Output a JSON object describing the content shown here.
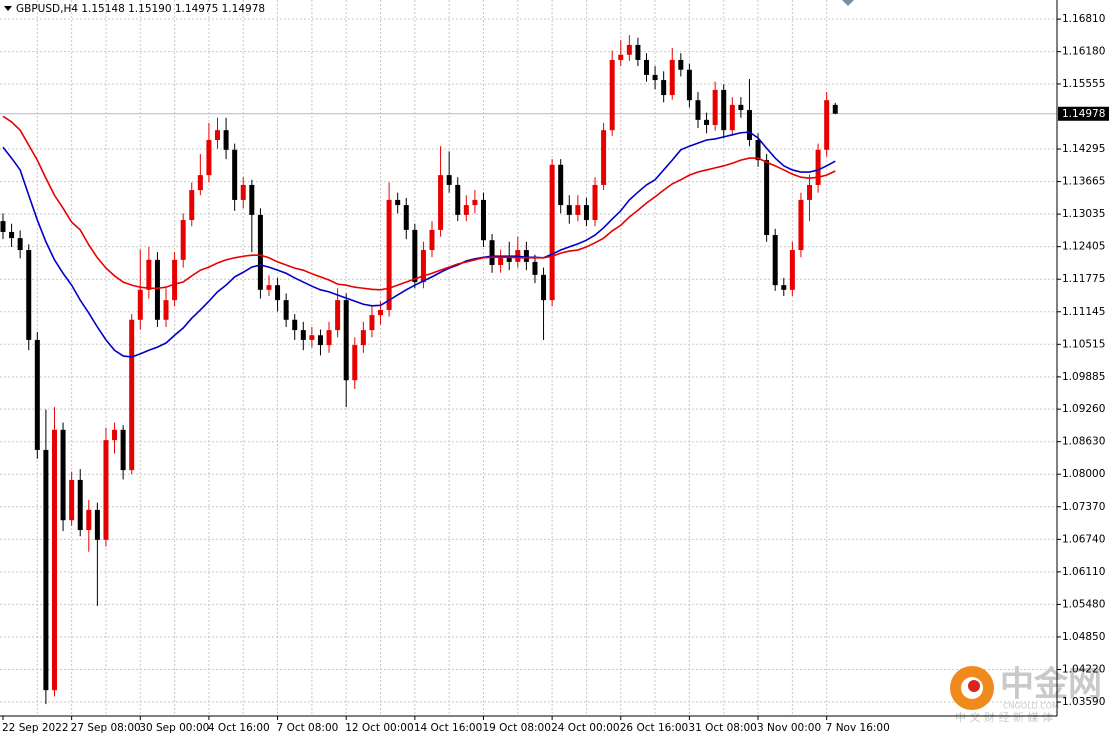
{
  "chart_data": {
    "type": "candlestick",
    "title": "GBPUSD,H4  1.15148 1.15190 1.14975 1.14978",
    "categories": [
      "22 Sep 2022",
      null,
      null,
      null,
      null,
      null,
      null,
      null,
      "27 Sep 08:00",
      null,
      null,
      null,
      null,
      null,
      null,
      null,
      "30 Sep 00:00",
      null,
      null,
      null,
      null,
      null,
      null,
      null,
      "4 Oct 16:00",
      null,
      null,
      null,
      null,
      null,
      null,
      null,
      "7 Oct 08:00",
      null,
      null,
      null,
      null,
      null,
      null,
      null,
      "12 Oct 00:00",
      null,
      null,
      null,
      null,
      null,
      null,
      null,
      "14 Oct 16:00",
      null,
      null,
      null,
      null,
      null,
      null,
      null,
      "19 Oct 08:00",
      null,
      null,
      null,
      null,
      null,
      null,
      null,
      "24 Oct 00:00",
      null,
      null,
      null,
      null,
      null,
      null,
      null,
      "26 Oct 16:00",
      null,
      null,
      null,
      null,
      null,
      null,
      null,
      "31 Oct 08:00",
      null,
      null,
      null,
      null,
      null,
      null,
      null,
      "3 Nov 00:00",
      null,
      null,
      null,
      null,
      null,
      null,
      null,
      "7 Nov 16:00",
      null
    ],
    "open": [
      1.129,
      1.1269,
      1.1257,
      1.1234,
      1.106,
      1.0847,
      1.0382,
      1.0886,
      1.0711,
      1.0789,
      1.0692,
      1.0731,
      1.0673,
      1.0866,
      1.0886,
      1.0808,
      1.1099,
      1.1157,
      1.1215,
      1.1099,
      1.1137,
      1.1215,
      1.1292,
      1.135,
      1.1379,
      1.1447,
      1.1466,
      1.1428,
      1.1331,
      1.136,
      1.1302,
      1.1157,
      1.1166,
      1.1137,
      1.1099,
      1.1079,
      1.106,
      1.1069,
      1.105,
      1.1079,
      1.1137,
      1.0982,
      1.105,
      1.1079,
      1.1108,
      1.1118,
      1.1331,
      1.1321,
      1.1273,
      1.1172,
      1.1234,
      1.1273,
      1.1379,
      1.136,
      1.1302,
      1.1321,
      1.1331,
      1.1253,
      1.1205,
      1.1219,
      1.1211,
      1.1234,
      1.1211,
      1.1186,
      1.1137,
      1.1399,
      1.1321,
      1.1302,
      1.1321,
      1.1292,
      1.136,
      1.1466,
      1.1602,
      1.1612,
      1.1631,
      1.1602,
      1.1573,
      1.1563,
      1.1534,
      1.1602,
      1.1583,
      1.1524,
      1.1486,
      1.1476,
      1.1544,
      1.1466,
      1.1515,
      1.1505,
      1.1447,
      1.1408,
      1.1263,
      1.1166,
      1.1157,
      1.1234,
      1.1331,
      1.136,
      1.1428,
      1.1515
    ],
    "high": [
      1.1305,
      1.1285,
      1.1272,
      1.1245,
      1.1075,
      1.0925,
      1.093,
      1.09,
      1.0805,
      1.081,
      1.075,
      1.0745,
      1.089,
      1.09,
      1.0895,
      1.111,
      1.1235,
      1.124,
      1.123,
      1.116,
      1.123,
      1.1305,
      1.1365,
      1.142,
      1.148,
      1.149,
      1.149,
      1.144,
      1.1375,
      1.137,
      1.1315,
      1.1185,
      1.118,
      1.115,
      1.111,
      1.1095,
      1.1085,
      1.108,
      1.1095,
      1.116,
      1.115,
      1.1065,
      1.1095,
      1.1125,
      1.1135,
      1.1365,
      1.1345,
      1.1335,
      1.1285,
      1.125,
      1.129,
      1.1435,
      1.1425,
      1.1375,
      1.134,
      1.135,
      1.1345,
      1.1265,
      1.1235,
      1.125,
      1.126,
      1.125,
      1.1225,
      1.12,
      1.141,
      1.141,
      1.134,
      1.134,
      1.1335,
      1.1375,
      1.148,
      1.162,
      1.164,
      1.165,
      1.1645,
      1.1615,
      1.159,
      1.158,
      1.1625,
      1.1615,
      1.1595,
      1.154,
      1.15,
      1.156,
      1.1555,
      1.153,
      1.153,
      1.1565,
      1.146,
      1.142,
      1.1275,
      1.118,
      1.125,
      1.1345,
      1.138,
      1.144,
      1.154,
      1.1519
    ],
    "low": [
      1.1255,
      1.124,
      1.1218,
      1.104,
      1.083,
      1.0355,
      1.037,
      1.069,
      1.07,
      1.068,
      1.065,
      1.0545,
      1.066,
      1.084,
      1.079,
      1.08,
      1.108,
      1.114,
      1.1085,
      1.1085,
      1.1125,
      1.12,
      1.128,
      1.134,
      1.1365,
      1.143,
      1.141,
      1.131,
      1.1315,
      1.123,
      1.114,
      1.1145,
      1.1115,
      1.1085,
      1.106,
      1.104,
      1.1045,
      1.103,
      1.1035,
      1.1065,
      1.093,
      1.0965,
      1.1035,
      1.1065,
      1.109,
      1.1105,
      1.1305,
      1.1255,
      1.116,
      1.116,
      1.122,
      1.126,
      1.1345,
      1.129,
      1.129,
      1.1305,
      1.124,
      1.119,
      1.119,
      1.1195,
      1.12,
      1.1195,
      1.117,
      1.106,
      1.1125,
      1.1305,
      1.1285,
      1.129,
      1.128,
      1.128,
      1.135,
      1.1455,
      1.159,
      1.16,
      1.159,
      1.156,
      1.1545,
      1.152,
      1.1525,
      1.157,
      1.151,
      1.147,
      1.146,
      1.1465,
      1.145,
      1.1455,
      1.149,
      1.1435,
      1.1395,
      1.125,
      1.1155,
      1.1145,
      1.1145,
      1.122,
      1.129,
      1.1345,
      1.1415,
      1.1497
    ],
    "close": [
      1.1269,
      1.1257,
      1.1234,
      1.106,
      1.0847,
      1.0382,
      1.0886,
      1.0711,
      1.0789,
      1.0692,
      1.0731,
      1.0673,
      1.0866,
      1.0886,
      1.0808,
      1.1099,
      1.1157,
      1.1215,
      1.1099,
      1.1137,
      1.1215,
      1.1292,
      1.135,
      1.1379,
      1.1447,
      1.1466,
      1.1428,
      1.1331,
      1.136,
      1.1302,
      1.1157,
      1.1166,
      1.1137,
      1.1099,
      1.1079,
      1.106,
      1.1069,
      1.105,
      1.1079,
      1.1137,
      1.0982,
      1.105,
      1.1079,
      1.1108,
      1.1118,
      1.1331,
      1.1321,
      1.1273,
      1.1172,
      1.1234,
      1.1273,
      1.1379,
      1.136,
      1.1302,
      1.1321,
      1.1331,
      1.1253,
      1.1205,
      1.1219,
      1.1211,
      1.1234,
      1.1211,
      1.1186,
      1.1137,
      1.1399,
      1.1321,
      1.1302,
      1.1321,
      1.1292,
      1.136,
      1.1466,
      1.1602,
      1.1612,
      1.1631,
      1.1602,
      1.1573,
      1.1563,
      1.1534,
      1.1602,
      1.1583,
      1.1524,
      1.1486,
      1.1476,
      1.1544,
      1.1466,
      1.1515,
      1.1505,
      1.1447,
      1.1408,
      1.1263,
      1.1166,
      1.1157,
      1.1234,
      1.1331,
      1.136,
      1.1428,
      1.1524,
      1.1498
    ],
    "up_color": "#e60000",
    "down_color": "#000000",
    "lines": [
      {
        "color": "#0000c8",
        "values": [
          1.1433,
          1.1412,
          1.1389,
          1.134,
          1.1292,
          1.125,
          1.1215,
          1.1189,
          1.1166,
          1.1137,
          1.1112,
          1.1085,
          1.106,
          1.104,
          1.1029,
          1.1027,
          1.1033,
          1.104,
          1.1046,
          1.1054,
          1.1069,
          1.1083,
          1.1102,
          1.1118,
          1.1135,
          1.1153,
          1.1166,
          1.1182,
          1.1191,
          1.1201,
          1.1205,
          1.1201,
          1.1195,
          1.1189,
          1.118,
          1.1172,
          1.1164,
          1.1157,
          1.1153,
          1.1147,
          1.1141,
          1.1135,
          1.1129,
          1.1126,
          1.1127,
          1.1137,
          1.1147,
          1.1157,
          1.1166,
          1.1174,
          1.1182,
          1.1191,
          1.1199,
          1.1205,
          1.1213,
          1.1217,
          1.122,
          1.1222,
          1.1222,
          1.1222,
          1.1222,
          1.122,
          1.122,
          1.1219,
          1.1226,
          1.1234,
          1.124,
          1.1246,
          1.1253,
          1.1263,
          1.1277,
          1.1294,
          1.131,
          1.1331,
          1.1346,
          1.136,
          1.137,
          1.1389,
          1.1408,
          1.1428,
          1.1435,
          1.1441,
          1.1447,
          1.1449,
          1.1453,
          1.1457,
          1.1461,
          1.1462,
          1.1451,
          1.1431,
          1.1412,
          1.1397,
          1.1389,
          1.1385,
          1.1385,
          1.1389,
          1.1397,
          1.1406
        ]
      },
      {
        "color": "#e60000",
        "values": [
          1.1493,
          1.1482,
          1.1466,
          1.1437,
          1.1408,
          1.1373,
          1.134,
          1.1315,
          1.1288,
          1.1273,
          1.1244,
          1.1219,
          1.1199,
          1.1184,
          1.1172,
          1.1166,
          1.1162,
          1.116,
          1.116,
          1.1162,
          1.1168,
          1.1172,
          1.1184,
          1.1195,
          1.1201,
          1.1209,
          1.1215,
          1.1219,
          1.1222,
          1.1224,
          1.1224,
          1.1219,
          1.1211,
          1.1205,
          1.1199,
          1.1195,
          1.1188,
          1.1182,
          1.1176,
          1.1168,
          1.1166,
          1.1162,
          1.116,
          1.1158,
          1.1157,
          1.116,
          1.1166,
          1.1172,
          1.1178,
          1.1184,
          1.1189,
          1.1195,
          1.1201,
          1.1207,
          1.1211,
          1.1215,
          1.1219,
          1.122,
          1.122,
          1.122,
          1.1219,
          1.1219,
          1.1219,
          1.1219,
          1.1222,
          1.1228,
          1.1232,
          1.1234,
          1.124,
          1.1248,
          1.1257,
          1.1271,
          1.1282,
          1.1298,
          1.1311,
          1.1325,
          1.1337,
          1.135,
          1.1362,
          1.137,
          1.1379,
          1.1385,
          1.1389,
          1.1393,
          1.1397,
          1.1402,
          1.1408,
          1.1412,
          1.1412,
          1.1404,
          1.1397,
          1.1389,
          1.1381,
          1.1375,
          1.1373,
          1.1375,
          1.1379,
          1.1387
        ]
      }
    ],
    "ylim": [
      1.0332,
      1.1718
    ],
    "yticks": [
      {
        "value": 1.1681,
        "label": "1.16810"
      },
      {
        "value": 1.1618,
        "label": "1.16180"
      },
      1.15555,
      1.14295,
      1.13665,
      1.13035,
      1.12405,
      1.11775,
      1.11145,
      1.10515,
      1.09885,
      {
        "value": 1.0926,
        "label": "1.09260"
      },
      {
        "value": 1.0863,
        "label": "1.08630"
      },
      {
        "value": 1.08,
        "label": "1.08000"
      },
      {
        "value": 1.0737,
        "label": "1.07370"
      },
      {
        "value": 1.0674,
        "label": "1.06740"
      },
      {
        "value": 1.0611,
        "label": "1.06110"
      },
      {
        "value": 1.0548,
        "label": "1.05480"
      },
      {
        "value": 1.0485,
        "label": "1.04850"
      },
      {
        "value": 1.0422,
        "label": "1.04220"
      },
      {
        "value": 1.0359,
        "label": "1.03590"
      }
    ],
    "grid": true,
    "last_price": 1.14978
  },
  "watermark": {
    "name": "中金网",
    "site": "CNGOLD.COM",
    "tagline": "中 文 财 经 新 媒 体"
  }
}
